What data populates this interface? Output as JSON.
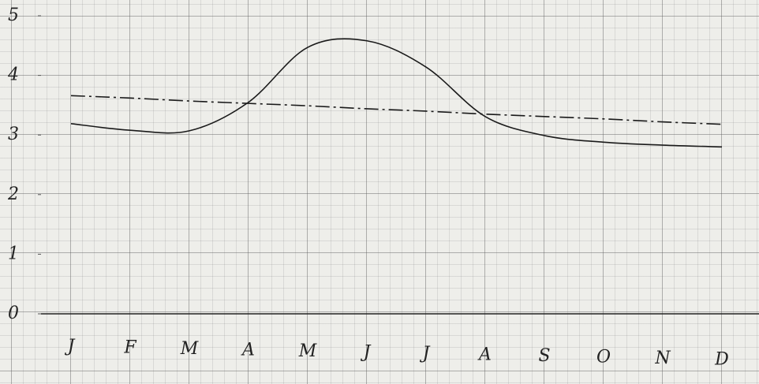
{
  "chart_data": {
    "type": "line",
    "categories": [
      "J",
      "F",
      "M",
      "A",
      "M",
      "J",
      "J",
      "A",
      "S",
      "O",
      "N",
      "D"
    ],
    "series": [
      {
        "color": "#1a1a1a",
        "style": "solid",
        "values": [
          3.19,
          3.08,
          3.07,
          3.55,
          4.47,
          4.58,
          4.14,
          3.31,
          2.99,
          2.88,
          2.83,
          2.8
        ]
      },
      {
        "color": "#1a1a1a",
        "style": "dash-dot",
        "values": [
          3.66,
          3.62,
          3.57,
          3.53,
          3.49,
          3.44,
          3.4,
          3.35,
          3.31,
          3.27,
          3.22,
          3.18
        ]
      }
    ],
    "ylim": [
      0,
      5
    ],
    "yticks": [
      0,
      1,
      2,
      3,
      4,
      5
    ],
    "grid": false
  }
}
